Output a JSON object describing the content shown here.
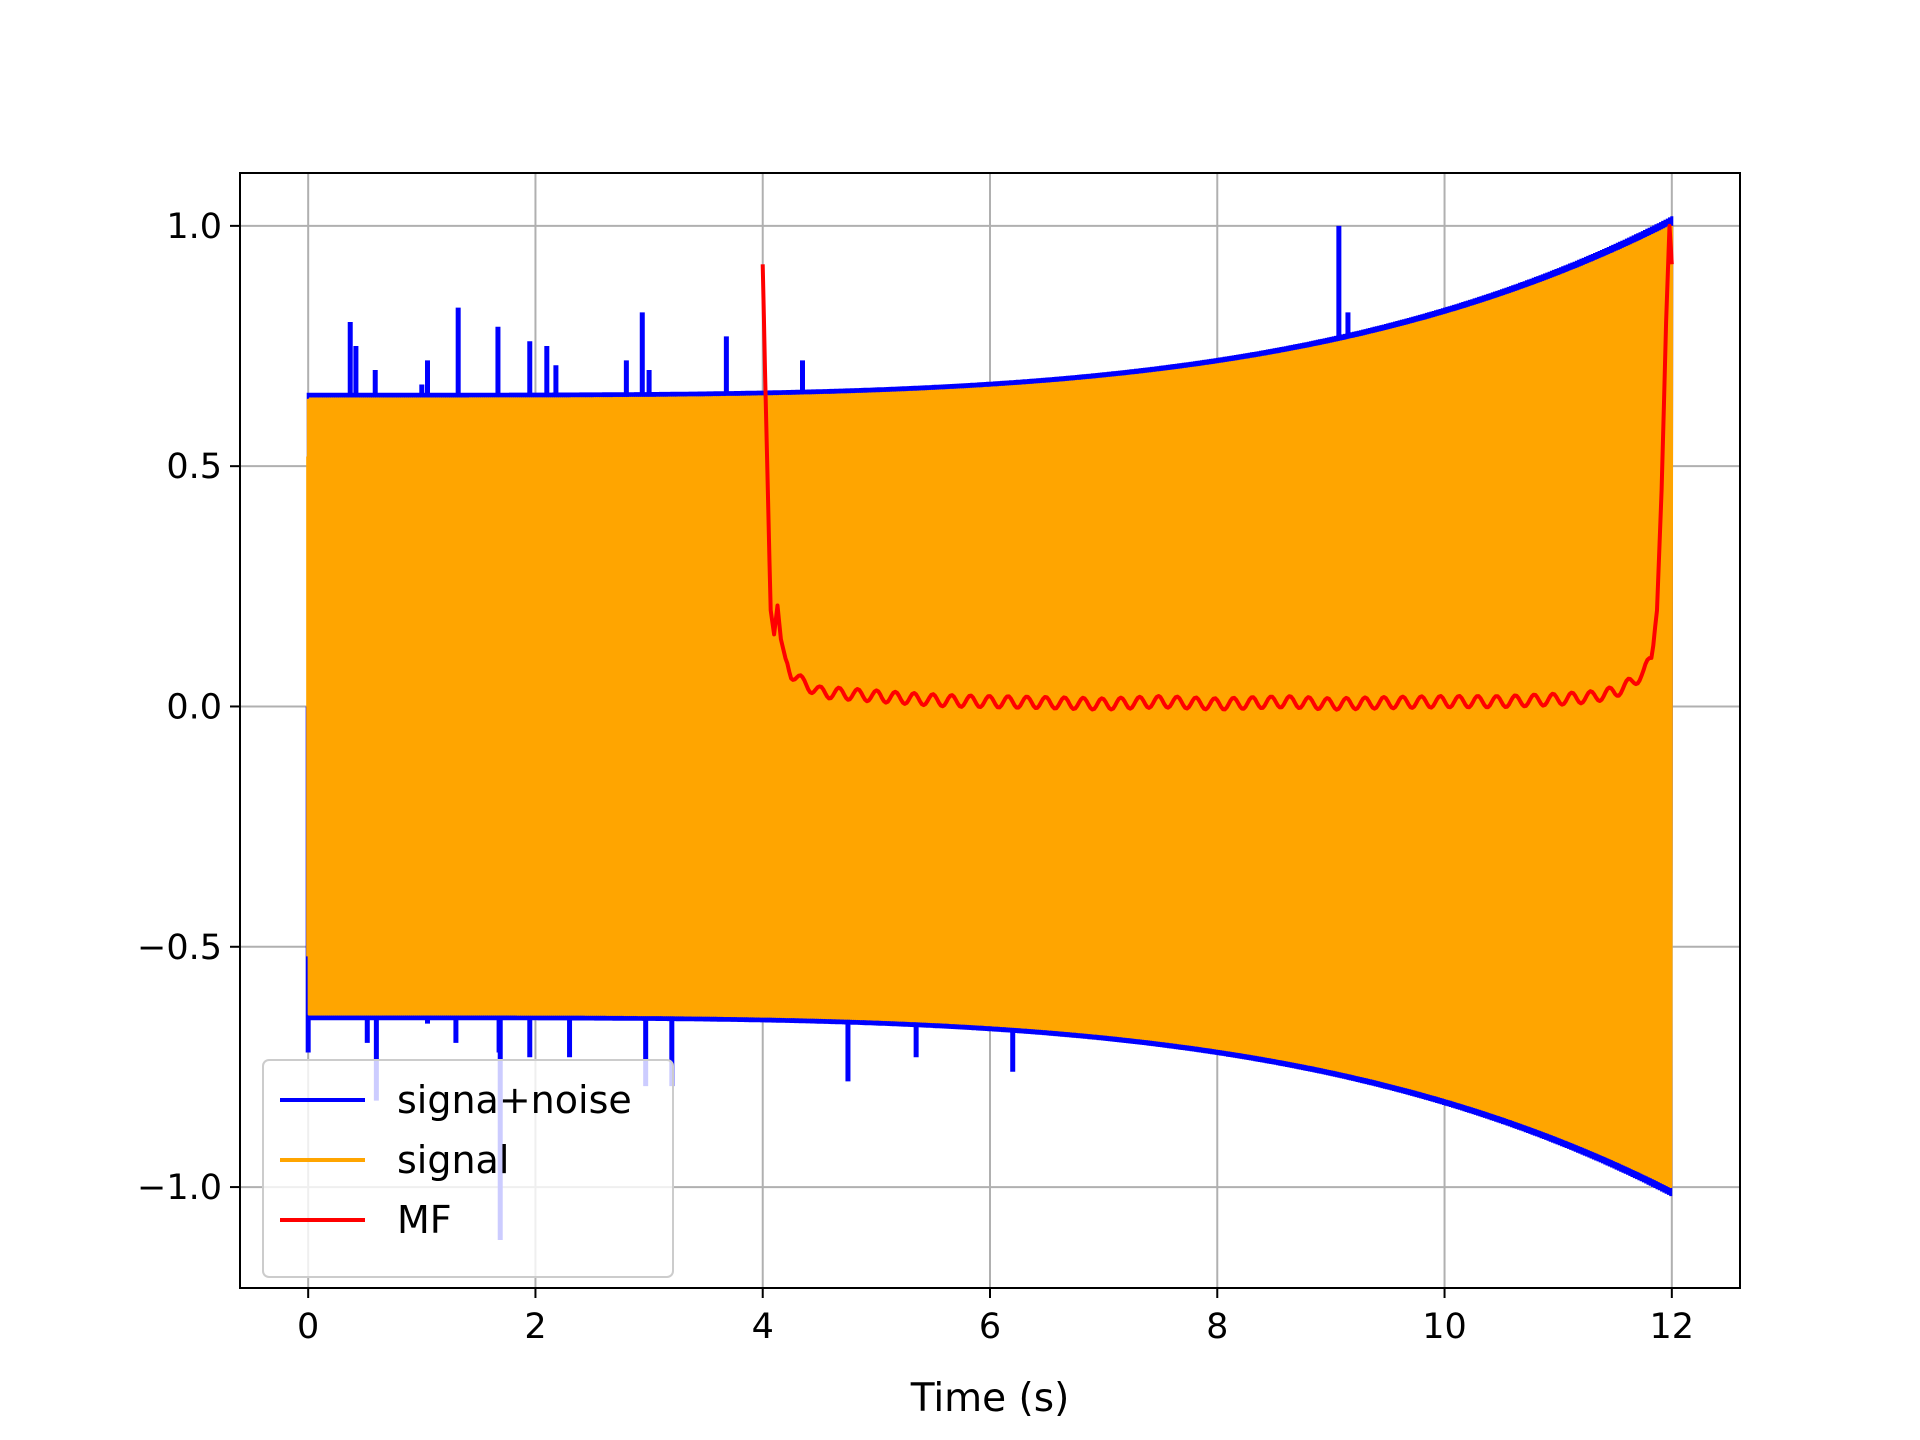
{
  "chart_data": {
    "type": "line",
    "title": "",
    "xlabel": "Time (s)",
    "ylabel": "",
    "xlim": [
      -0.6,
      12.6
    ],
    "ylim": [
      -1.21,
      1.11
    ],
    "xticks": [
      0,
      2,
      4,
      6,
      8,
      10,
      12
    ],
    "xtick_labels": [
      "0",
      "2",
      "4",
      "6",
      "8",
      "10",
      "12"
    ],
    "yticks": [
      -1.0,
      -0.5,
      0.0,
      0.5,
      1.0
    ],
    "ytick_labels": [
      "−1.0",
      "−0.5",
      "0.0",
      "0.5",
      "1.0"
    ],
    "grid": true,
    "legend_position": "lower-left",
    "series": [
      {
        "name": "signa+noise",
        "color": "#0000ff",
        "description_type": "oscillation with noise spikes",
        "start": 0,
        "end": 12,
        "spikes": [
          [
            0.37,
            0.8
          ],
          [
            0.42,
            0.75
          ],
          [
            0.59,
            0.7
          ],
          [
            1.0,
            0.67
          ],
          [
            1.05,
            0.72
          ],
          [
            1.32,
            0.83
          ],
          [
            1.67,
            0.79
          ],
          [
            1.95,
            0.76
          ],
          [
            2.1,
            0.75
          ],
          [
            2.18,
            0.71
          ],
          [
            2.8,
            0.72
          ],
          [
            2.94,
            0.82
          ],
          [
            3.0,
            0.7
          ],
          [
            3.68,
            0.77
          ],
          [
            4.35,
            0.72
          ],
          [
            9.07,
            1.0
          ],
          [
            9.15,
            0.82
          ],
          [
            0.0,
            -0.72
          ],
          [
            0.37,
            -0.65
          ],
          [
            0.52,
            -0.7
          ],
          [
            0.6,
            -0.82
          ],
          [
            1.05,
            -0.66
          ],
          [
            1.3,
            -0.7
          ],
          [
            1.68,
            -0.72
          ],
          [
            1.69,
            -1.11
          ],
          [
            1.95,
            -0.73
          ],
          [
            2.3,
            -0.73
          ],
          [
            2.97,
            -0.79
          ],
          [
            3.2,
            -0.79
          ],
          [
            4.75,
            -0.78
          ],
          [
            5.35,
            -0.73
          ],
          [
            6.2,
            -0.76
          ]
        ]
      },
      {
        "name": "signal",
        "color": "#ffa500",
        "description_type": "chirp with growing amplitude",
        "start": 0,
        "end": 12,
        "amplitude_start": 0.64,
        "amplitude_end": 1.0
      },
      {
        "name": "MF",
        "color": "#ff0000",
        "description_type": "matched filter output",
        "points": [
          [
            4.0,
            0.92
          ],
          [
            4.02,
            0.7
          ],
          [
            4.05,
            0.4
          ],
          [
            4.07,
            0.2
          ],
          [
            4.1,
            0.15
          ],
          [
            4.13,
            0.21
          ],
          [
            4.16,
            0.14
          ],
          [
            4.2,
            0.1
          ],
          [
            4.25,
            0.07
          ],
          [
            4.35,
            0.05
          ],
          [
            4.5,
            0.03
          ],
          [
            4.8,
            0.025
          ],
          [
            5.2,
            0.018
          ],
          [
            5.6,
            0.012
          ],
          [
            6.0,
            0.01
          ],
          [
            6.5,
            0.008
          ],
          [
            7.0,
            0.005
          ],
          [
            7.5,
            0.01
          ],
          [
            8.0,
            0.005
          ],
          [
            8.6,
            0.01
          ],
          [
            9.0,
            0.005
          ],
          [
            9.5,
            0.008
          ],
          [
            10.0,
            0.01
          ],
          [
            10.5,
            0.01
          ],
          [
            11.0,
            0.015
          ],
          [
            11.3,
            0.02
          ],
          [
            11.5,
            0.03
          ],
          [
            11.65,
            0.05
          ],
          [
            11.75,
            0.07
          ],
          [
            11.82,
            0.1
          ],
          [
            11.87,
            0.2
          ],
          [
            11.91,
            0.45
          ],
          [
            11.95,
            0.8
          ],
          [
            11.98,
            1.0
          ],
          [
            12.0,
            0.92
          ]
        ]
      }
    ]
  }
}
